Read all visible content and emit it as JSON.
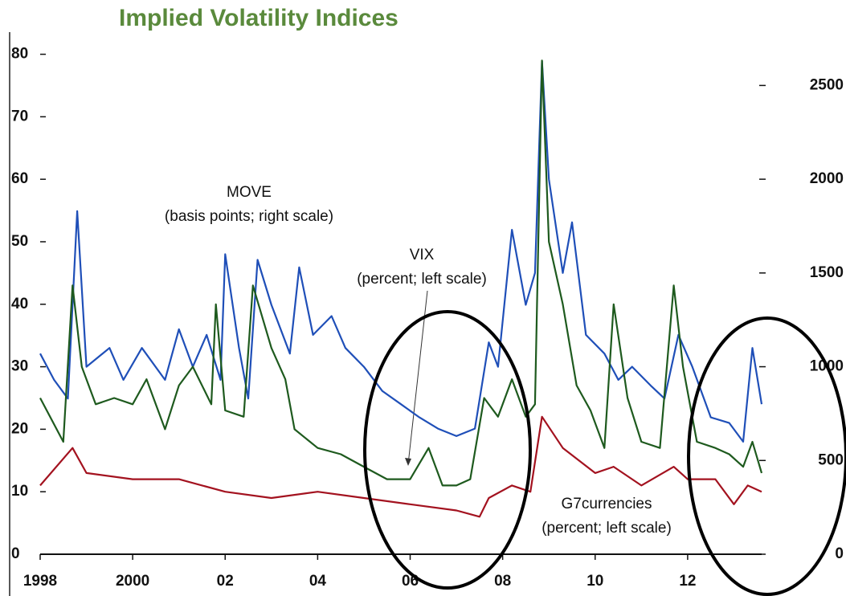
{
  "chart_data": {
    "type": "line",
    "title": "Implied Volatility Indices",
    "annotations": [
      "MOVE",
      "(basis points; right scale)",
      "VIX",
      "(percent; left scale)",
      "G7currencies",
      "(percent; left scale)"
    ],
    "xlim": [
      1998,
      2013.6
    ],
    "xticks": [
      1998,
      2000,
      {
        "value": 2002,
        "label": "02"
      },
      {
        "value": 2004,
        "label": "04"
      },
      {
        "value": 2006,
        "label": "06"
      },
      {
        "value": 2008,
        "label": "08"
      },
      {
        "value": 2010,
        "label": "10"
      },
      {
        "value": 2012,
        "label": "12"
      }
    ],
    "ylim": [
      0,
      82
    ],
    "yticks": [
      0,
      10,
      20,
      30,
      40,
      50,
      60,
      70,
      80
    ],
    "y2lim": [
      0,
      2733
    ],
    "y2ticks": [
      0,
      500,
      1000,
      1500,
      2000,
      2500
    ],
    "series": [
      {
        "name": "MOVE",
        "color": "#1f4fb8",
        "axis": "y2",
        "x": [
          1998.0,
          1998.3,
          1998.6,
          1998.8,
          1999.0,
          1999.5,
          1999.8,
          2000.2,
          2000.7,
          2001.0,
          2001.3,
          2001.6,
          2001.9,
          2002.0,
          2002.3,
          2002.5,
          2002.7,
          2003.0,
          2003.4,
          2003.6,
          2003.9,
          2004.3,
          2004.6,
          2005.0,
          2005.4,
          2005.8,
          2006.2,
          2006.6,
          2007.0,
          2007.4,
          2007.7,
          2007.9,
          2008.2,
          2008.5,
          2008.7,
          2008.85,
          2009.0,
          2009.3,
          2009.5,
          2009.8,
          2010.2,
          2010.5,
          2010.8,
          2011.2,
          2011.5,
          2011.8,
          2012.1,
          2012.5,
          2012.9,
          2013.2,
          2013.4,
          2013.6
        ],
        "values": [
          1070,
          930,
          830,
          1830,
          1000,
          1100,
          930,
          1100,
          930,
          1200,
          1000,
          1170,
          930,
          1600,
          1100,
          830,
          1570,
          1330,
          1070,
          1530,
          1170,
          1270,
          1100,
          1000,
          870,
          800,
          730,
          670,
          630,
          670,
          1130,
          1000,
          1730,
          1330,
          1500,
          2630,
          2000,
          1500,
          1770,
          1170,
          1070,
          930,
          1000,
          900,
          830,
          1170,
          1000,
          730,
          700,
          600,
          1100,
          800
        ]
      },
      {
        "name": "VIX",
        "color": "#1e5a1e",
        "axis": "y",
        "x": [
          1998.0,
          1998.5,
          1998.7,
          1998.9,
          1999.2,
          1999.6,
          2000.0,
          2000.3,
          2000.7,
          2001.0,
          2001.3,
          2001.7,
          2001.8,
          2002.0,
          2002.4,
          2002.6,
          2002.8,
          2003.0,
          2003.3,
          2003.5,
          2004.0,
          2004.5,
          2005.0,
          2005.5,
          2006.0,
          2006.4,
          2006.7,
          2007.0,
          2007.3,
          2007.6,
          2007.9,
          2008.2,
          2008.5,
          2008.7,
          2008.85,
          2009.0,
          2009.3,
          2009.6,
          2009.9,
          2010.2,
          2010.4,
          2010.7,
          2011.0,
          2011.4,
          2011.7,
          2011.9,
          2012.2,
          2012.6,
          2012.9,
          2013.2,
          2013.4,
          2013.6
        ],
        "values": [
          25,
          18,
          43,
          30,
          24,
          25,
          24,
          28,
          20,
          27,
          30,
          24,
          40,
          23,
          22,
          43,
          38,
          33,
          28,
          20,
          17,
          16,
          14,
          12,
          12,
          17,
          11,
          11,
          12,
          25,
          22,
          28,
          22,
          24,
          79,
          50,
          40,
          27,
          23,
          17,
          40,
          25,
          18,
          17,
          43,
          30,
          18,
          17,
          16,
          14,
          18,
          13
        ]
      },
      {
        "name": "G7currencies",
        "color": "#a3121f",
        "axis": "y",
        "x": [
          1998.0,
          1998.7,
          1999.0,
          2000.0,
          2001.0,
          2002.0,
          2003.0,
          2004.0,
          2005.0,
          2006.0,
          2007.0,
          2007.5,
          2007.7,
          2008.2,
          2008.6,
          2008.85,
          2009.3,
          2010.0,
          2010.4,
          2011.0,
          2011.7,
          2012.0,
          2012.6,
          2013.0,
          2013.3,
          2013.6
        ],
        "values": [
          11,
          17,
          13,
          12,
          12,
          10,
          9,
          10,
          9,
          8,
          7,
          6,
          9,
          11,
          10,
          22,
          17,
          13,
          14,
          11,
          14,
          12,
          12,
          8,
          11,
          10
        ]
      }
    ]
  }
}
